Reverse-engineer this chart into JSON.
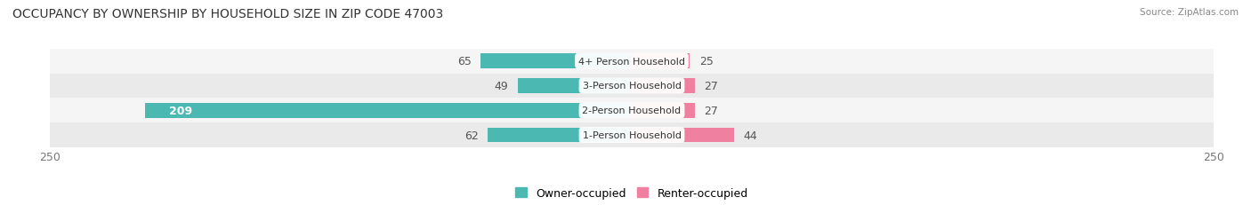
{
  "title": "OCCUPANCY BY OWNERSHIP BY HOUSEHOLD SIZE IN ZIP CODE 47003",
  "source": "Source: ZipAtlas.com",
  "categories": [
    "1-Person Household",
    "2-Person Household",
    "3-Person Household",
    "4+ Person Household"
  ],
  "owner_values": [
    62,
    209,
    49,
    65
  ],
  "renter_values": [
    44,
    27,
    27,
    25
  ],
  "owner_color": "#4BB8B2",
  "renter_color": "#F080A0",
  "row_bg_light": "#F5F5F5",
  "row_bg_dark": "#EAEAEA",
  "axis_max": 250,
  "label_fontsize": 9,
  "title_fontsize": 10,
  "source_fontsize": 7.5,
  "legend_owner": "Owner-occupied",
  "legend_renter": "Renter-occupied",
  "figsize": [
    14.06,
    2.32
  ],
  "dpi": 100,
  "bar_height": 0.6
}
